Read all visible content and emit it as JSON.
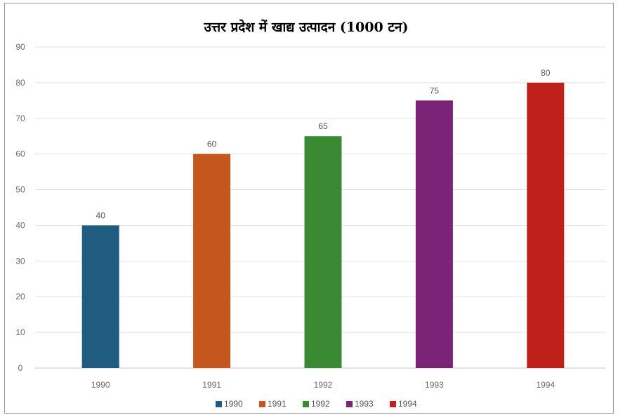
{
  "chart_data": {
    "type": "bar",
    "title": "उत्तर प्रदेश में खाद्य उत्पादन (1000 टन)",
    "categories": [
      "1990",
      "1991",
      "1992",
      "1993",
      "1994"
    ],
    "values": [
      40,
      60,
      65,
      75,
      80
    ],
    "colors": [
      "#1f5c80",
      "#c4561e",
      "#3a8a34",
      "#7a2377",
      "#c0201a"
    ],
    "yticks": [
      "0",
      "10",
      "20",
      "30",
      "40",
      "50",
      "60",
      "70",
      "80",
      "90"
    ],
    "ylim": [
      0,
      90
    ],
    "data_labels": [
      "40",
      "60",
      "65",
      "75",
      "80"
    ],
    "legend": {
      "position": "bottom",
      "entries": [
        "1990",
        "1991",
        "1992",
        "1993",
        "1994"
      ]
    },
    "grid": true
  }
}
